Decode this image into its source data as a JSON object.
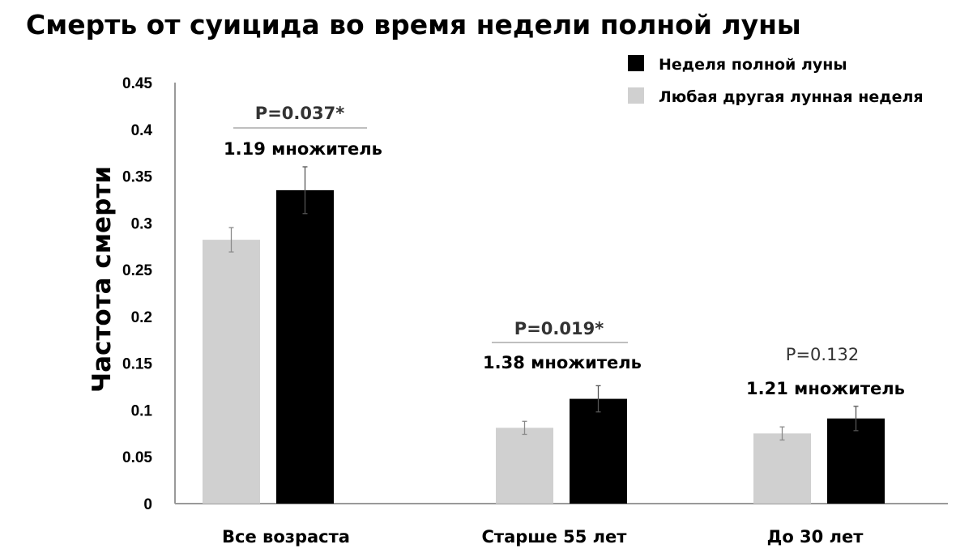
{
  "chart_data": {
    "type": "bar",
    "title": "Смерть от суицида во время недели полной луны",
    "xlabel": "",
    "ylabel": "Частота смерти",
    "ylim": [
      0,
      0.45
    ],
    "yticks": [
      "0",
      "0.05",
      "0.1",
      "0.15",
      "0.2",
      "0.25",
      "0.3",
      "0.35",
      "0.4",
      "0.45"
    ],
    "categories": [
      "Все возраста",
      "Старше 55 лет",
      "До 30 лет"
    ],
    "series": [
      {
        "name": "Любая другая лунная неделя",
        "color": "#d0d0d0",
        "values": [
          0.282,
          0.081,
          0.075
        ],
        "errors": [
          0.013,
          0.007,
          0.007
        ]
      },
      {
        "name": "Неделя полной луны",
        "color": "#000000",
        "values": [
          0.335,
          0.112,
          0.091
        ],
        "errors": [
          0.025,
          0.014,
          0.013
        ]
      }
    ],
    "legend_position": "top-right",
    "grid": false,
    "annotations": [
      {
        "category": 0,
        "p_value": "P=0.037*",
        "significant": true,
        "multiplier": "1.19 множитель"
      },
      {
        "category": 1,
        "p_value": "P=0.019*",
        "significant": true,
        "multiplier": "1.38 множитель"
      },
      {
        "category": 2,
        "p_value": "P=0.132",
        "significant": false,
        "multiplier": "1.21 множитель"
      }
    ]
  }
}
